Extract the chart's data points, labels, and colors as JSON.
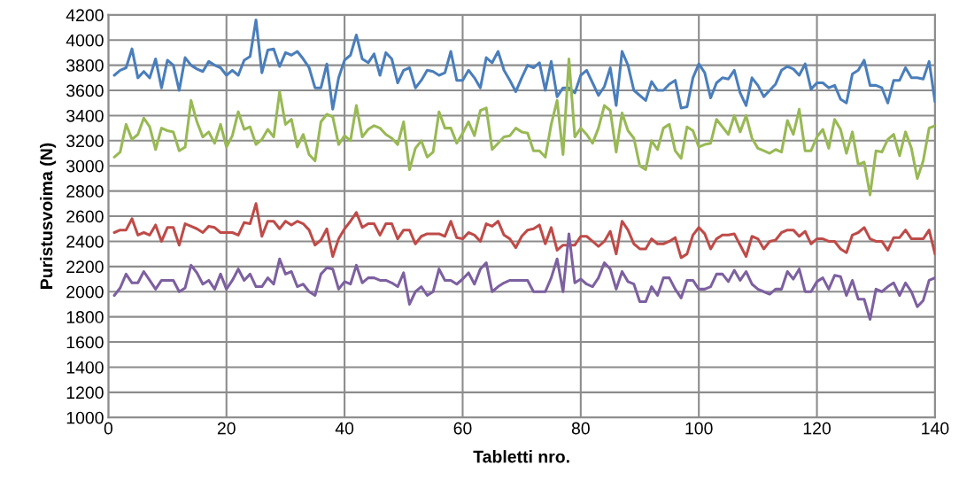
{
  "chart_data": {
    "type": "line",
    "xlabel": "Tabletti nro.",
    "ylabel": "Puristusvoima (N)",
    "x": [
      1,
      2,
      3,
      4,
      5,
      6,
      7,
      8,
      9,
      10,
      11,
      12,
      13,
      14,
      15,
      16,
      17,
      18,
      19,
      20,
      21,
      22,
      23,
      24,
      25,
      26,
      27,
      28,
      29,
      30,
      31,
      32,
      33,
      34,
      35,
      36,
      37,
      38,
      39,
      40,
      41,
      42,
      43,
      44,
      45,
      46,
      47,
      48,
      49,
      50,
      51,
      52,
      53,
      54,
      55,
      56,
      57,
      58,
      59,
      60,
      61,
      62,
      63,
      64,
      65,
      66,
      67,
      68,
      69,
      70,
      71,
      72,
      73,
      74,
      75,
      76,
      77,
      78,
      79,
      80,
      81,
      82,
      83,
      84,
      85,
      86,
      87,
      88,
      89,
      90,
      91,
      92,
      93,
      94,
      95,
      96,
      97,
      98,
      99,
      100,
      101,
      102,
      103,
      104,
      105,
      106,
      107,
      108,
      109,
      110,
      111,
      112,
      113,
      114,
      115,
      116,
      117,
      118,
      119,
      120,
      121,
      122,
      123,
      124,
      125,
      126,
      127,
      128,
      129,
      130,
      131,
      132,
      133,
      134,
      135,
      136,
      137,
      138,
      139,
      140
    ],
    "xlim": [
      0,
      140
    ],
    "xticks": [
      0,
      20,
      40,
      60,
      80,
      100,
      120,
      140
    ],
    "ylim": [
      1000,
      4200
    ],
    "yticks": [
      1000,
      1200,
      1400,
      1600,
      1800,
      2000,
      2200,
      2400,
      2600,
      2800,
      3000,
      3200,
      3400,
      3600,
      3800,
      4000,
      4200
    ],
    "grid": true,
    "legend": false,
    "marker": "none",
    "line_style": "solid",
    "series": [
      {
        "color": "#4a7ebb",
        "values": [
          3720,
          3760,
          3780,
          3930,
          3700,
          3750,
          3700,
          3850,
          3620,
          3840,
          3800,
          3600,
          3860,
          3800,
          3770,
          3750,
          3830,
          3800,
          3780,
          3720,
          3760,
          3720,
          3840,
          3870,
          4160,
          3740,
          3920,
          3930,
          3790,
          3900,
          3880,
          3910,
          3850,
          3780,
          3620,
          3620,
          3810,
          3450,
          3700,
          3840,
          3880,
          4040,
          3850,
          3820,
          3890,
          3720,
          3900,
          3850,
          3660,
          3760,
          3780,
          3620,
          3680,
          3760,
          3750,
          3720,
          3740,
          3910,
          3680,
          3680,
          3760,
          3700,
          3620,
          3860,
          3820,
          3910,
          3760,
          3680,
          3590,
          3700,
          3800,
          3780,
          3820,
          3600,
          3830,
          3550,
          3620,
          3620,
          3580,
          3720,
          3760,
          3660,
          3560,
          3630,
          3780,
          3480,
          3910,
          3800,
          3600,
          3560,
          3520,
          3670,
          3600,
          3600,
          3650,
          3680,
          3460,
          3470,
          3700,
          3810,
          3740,
          3540,
          3660,
          3700,
          3690,
          3760,
          3580,
          3480,
          3700,
          3640,
          3550,
          3600,
          3650,
          3760,
          3790,
          3770,
          3720,
          3810,
          3610,
          3660,
          3660,
          3620,
          3640,
          3530,
          3500,
          3730,
          3760,
          3840,
          3640,
          3640,
          3620,
          3500,
          3680,
          3680,
          3780,
          3700,
          3700,
          3690,
          3830,
          3510
        ]
      },
      {
        "color": "#98b954",
        "values": [
          3070,
          3110,
          3330,
          3210,
          3250,
          3380,
          3310,
          3130,
          3300,
          3280,
          3270,
          3120,
          3150,
          3520,
          3350,
          3230,
          3270,
          3180,
          3330,
          3150,
          3240,
          3430,
          3290,
          3310,
          3170,
          3210,
          3290,
          3230,
          3590,
          3330,
          3370,
          3150,
          3250,
          3090,
          3040,
          3350,
          3410,
          3390,
          3170,
          3240,
          3200,
          3480,
          3230,
          3290,
          3320,
          3300,
          3250,
          3220,
          3170,
          3350,
          2970,
          3140,
          3200,
          3070,
          3110,
          3430,
          3300,
          3300,
          3180,
          3260,
          3350,
          3240,
          3440,
          3460,
          3130,
          3180,
          3230,
          3240,
          3300,
          3270,
          3260,
          3120,
          3120,
          3070,
          3330,
          3520,
          3090,
          3850,
          3230,
          3300,
          3250,
          3180,
          3300,
          3480,
          3440,
          3110,
          3420,
          3280,
          3220,
          3000,
          2970,
          3200,
          3130,
          3300,
          3330,
          3120,
          3060,
          3310,
          3280,
          3150,
          3170,
          3180,
          3370,
          3310,
          3250,
          3400,
          3270,
          3400,
          3220,
          3140,
          3120,
          3100,
          3130,
          3110,
          3360,
          3250,
          3450,
          3120,
          3120,
          3230,
          3290,
          3140,
          3370,
          3290,
          3100,
          3270,
          3010,
          3030,
          2770,
          3120,
          3110,
          3210,
          3250,
          3080,
          3270,
          3140,
          2900,
          3040,
          3300,
          3320
        ]
      },
      {
        "color": "#be4b48",
        "values": [
          2470,
          2490,
          2490,
          2580,
          2450,
          2470,
          2450,
          2530,
          2400,
          2510,
          2510,
          2370,
          2540,
          2520,
          2500,
          2470,
          2520,
          2510,
          2470,
          2470,
          2470,
          2450,
          2550,
          2540,
          2700,
          2440,
          2560,
          2560,
          2500,
          2560,
          2530,
          2560,
          2540,
          2490,
          2370,
          2410,
          2500,
          2280,
          2420,
          2500,
          2560,
          2630,
          2510,
          2540,
          2540,
          2450,
          2540,
          2540,
          2420,
          2490,
          2490,
          2380,
          2440,
          2460,
          2460,
          2460,
          2440,
          2560,
          2430,
          2420,
          2470,
          2450,
          2400,
          2540,
          2520,
          2560,
          2450,
          2420,
          2350,
          2440,
          2490,
          2500,
          2530,
          2380,
          2510,
          2330,
          2370,
          2370,
          2370,
          2440,
          2440,
          2400,
          2360,
          2400,
          2480,
          2300,
          2560,
          2490,
          2380,
          2340,
          2340,
          2420,
          2380,
          2380,
          2400,
          2430,
          2270,
          2300,
          2450,
          2510,
          2460,
          2340,
          2420,
          2450,
          2450,
          2460,
          2370,
          2280,
          2440,
          2420,
          2340,
          2400,
          2410,
          2470,
          2490,
          2490,
          2440,
          2480,
          2380,
          2420,
          2420,
          2400,
          2400,
          2340,
          2310,
          2450,
          2470,
          2510,
          2420,
          2400,
          2400,
          2330,
          2430,
          2430,
          2490,
          2420,
          2420,
          2420,
          2490,
          2300
        ]
      },
      {
        "color": "#7d60a0",
        "values": [
          1970,
          2030,
          2140,
          2070,
          2070,
          2160,
          2090,
          2020,
          2090,
          2090,
          2090,
          2000,
          2030,
          2210,
          2150,
          2060,
          2090,
          2020,
          2140,
          2020,
          2090,
          2180,
          2090,
          2140,
          2040,
          2040,
          2110,
          2060,
          2260,
          2140,
          2160,
          2040,
          2060,
          2000,
          1970,
          2140,
          2190,
          2180,
          2020,
          2080,
          2060,
          2210,
          2070,
          2110,
          2110,
          2090,
          2090,
          2070,
          2040,
          2150,
          1900,
          2000,
          2040,
          1970,
          2000,
          2180,
          2090,
          2090,
          2060,
          2100,
          2150,
          2060,
          2180,
          2230,
          2000,
          2040,
          2070,
          2090,
          2090,
          2090,
          2090,
          2000,
          2000,
          2000,
          2110,
          2260,
          2000,
          2460,
          2070,
          2100,
          2060,
          2040,
          2110,
          2230,
          2180,
          2020,
          2160,
          2080,
          2060,
          1920,
          1920,
          2040,
          1970,
          2110,
          2110,
          2020,
          1950,
          2090,
          2090,
          2020,
          2020,
          2040,
          2140,
          2140,
          2080,
          2170,
          2090,
          2160,
          2060,
          2020,
          2000,
          1980,
          2020,
          2020,
          2160,
          2100,
          2180,
          2000,
          2000,
          2080,
          2110,
          2020,
          2130,
          2120,
          1970,
          2090,
          1940,
          1940,
          1780,
          2020,
          2000,
          2040,
          2070,
          1970,
          2070,
          2000,
          1880,
          1930,
          2090,
          2110
        ]
      }
    ]
  }
}
